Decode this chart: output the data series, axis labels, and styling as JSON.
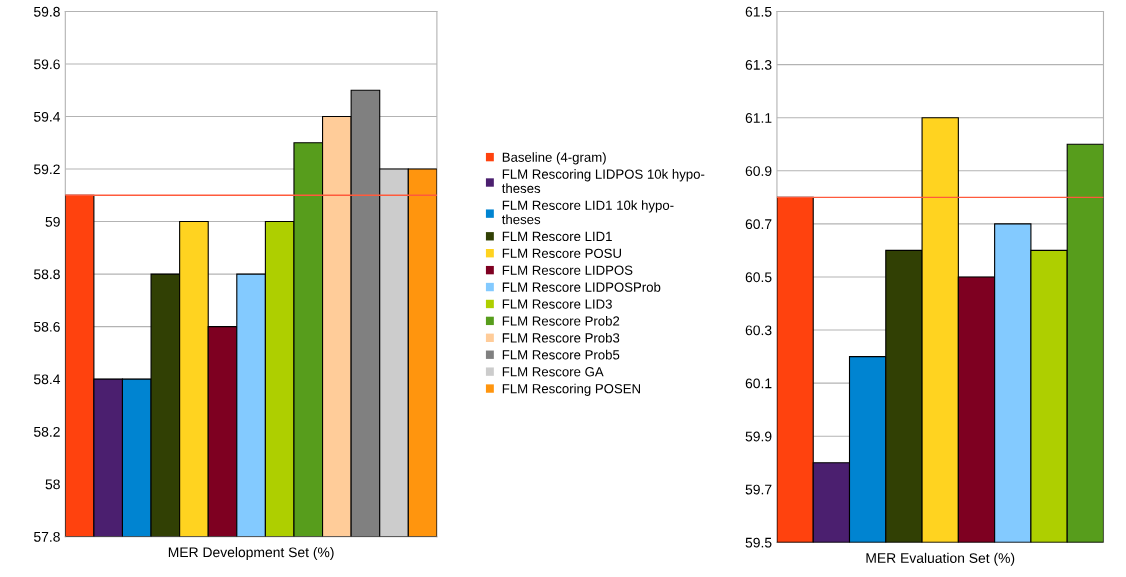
{
  "chart_data": [
    {
      "type": "bar",
      "xlabel": "MER Development Set (%)",
      "categories": [
        null
      ],
      "ylim": [
        57.8,
        59.8
      ],
      "yticks": [
        57.8,
        58,
        58.2,
        58.4,
        58.6,
        58.8,
        59,
        59.2,
        59.4,
        59.6,
        59.8
      ],
      "grid": "y",
      "legend": "right",
      "ref_lines": [
        {
          "axis": "y",
          "value": 59.1,
          "color": "#ff5a3c"
        }
      ],
      "series": [
        {
          "name": "Baseline (4-gram)",
          "color": "#ff420e",
          "values": [
            59.1
          ]
        },
        {
          "name": "FLM Rescoring LIDPOS 10k hypo-\ntheses",
          "color": "#4b1f6f",
          "values": [
            58.4
          ]
        },
        {
          "name": "FLM Rescore LID1 10k hypo-\ntheses",
          "color": "#0084d1",
          "values": [
            58.4
          ]
        },
        {
          "name": "FLM Rescore LID1",
          "color": "#314004",
          "values": [
            58.8
          ]
        },
        {
          "name": "FLM Rescore POSU",
          "color": "#ffd320",
          "values": [
            59.0
          ]
        },
        {
          "name": "FLM Rescore LIDPOS",
          "color": "#7e0021",
          "values": [
            58.6
          ]
        },
        {
          "name": "FLM Rescore LIDPOSProb",
          "color": "#83caff",
          "values": [
            58.8
          ]
        },
        {
          "name": "FLM Rescore LID3",
          "color": "#aecf00",
          "values": [
            59.0
          ]
        },
        {
          "name": "FLM Rescore Prob2",
          "color": "#579d1c",
          "values": [
            59.3
          ]
        },
        {
          "name": "FLM Rescore Prob3",
          "color": "#ffcc99",
          "values": [
            59.4
          ]
        },
        {
          "name": "FLM Rescore Prob5",
          "color": "#808080",
          "values": [
            59.5
          ]
        },
        {
          "name": "FLM Rescore GA",
          "color": "#cccccc",
          "values": [
            59.2
          ]
        },
        {
          "name": "FLM Rescoring POSEN",
          "color": "#ff950e",
          "values": [
            59.2
          ]
        }
      ]
    },
    {
      "type": "bar",
      "xlabel": "MER Evaluation Set (%)",
      "categories": [
        null
      ],
      "ylim": [
        59.5,
        61.5
      ],
      "yticks": [
        59.5,
        59.7,
        59.9,
        60.1,
        60.3,
        60.5,
        60.7,
        60.9,
        61.1,
        61.3,
        61.5
      ],
      "grid": "y",
      "ref_lines": [
        {
          "axis": "y",
          "value": 60.8,
          "color": "#ff5a3c"
        }
      ],
      "series": [
        {
          "color": "#ff420e",
          "values": [
            60.8
          ]
        },
        {
          "color": "#4b1f6f",
          "values": [
            59.8
          ]
        },
        {
          "color": "#0084d1",
          "values": [
            60.2
          ]
        },
        {
          "color": "#314004",
          "values": [
            60.6
          ]
        },
        {
          "color": "#ffd320",
          "values": [
            61.1
          ]
        },
        {
          "color": "#7e0021",
          "values": [
            60.5
          ]
        },
        {
          "color": "#83caff",
          "values": [
            60.7
          ]
        },
        {
          "color": "#aecf00",
          "values": [
            60.6
          ]
        },
        {
          "color": "#579d1c",
          "values": [
            61.0
          ]
        }
      ]
    }
  ]
}
